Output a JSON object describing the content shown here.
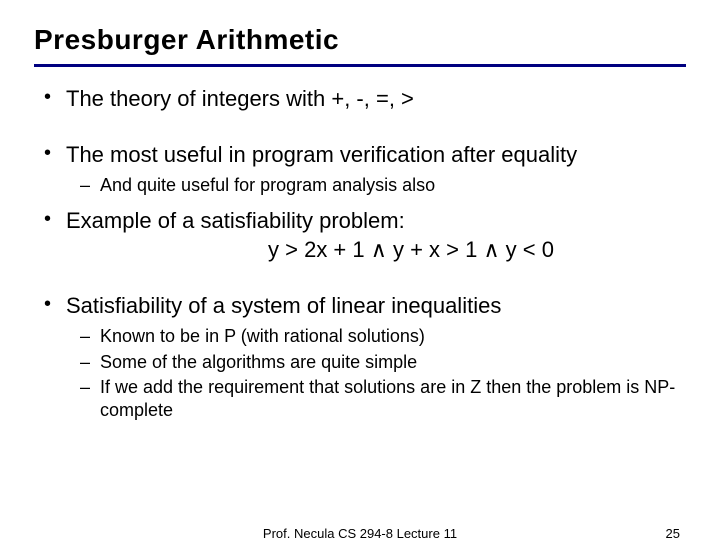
{
  "colors": {
    "text": "#000000",
    "background": "#ffffff",
    "rule": "#000080"
  },
  "typography": {
    "family": "Comic Sans MS",
    "title_size_pt": 28,
    "body_size_pt": 22,
    "sub_size_pt": 18,
    "footer_size_pt": 13,
    "title_weight": "bold"
  },
  "title": "Presburger Arithmetic",
  "bullets": {
    "b1": "The theory of integers with +, -, =, >",
    "b2": "The most useful in program verification after equality",
    "b2_sub": {
      "s1": "And quite useful for program analysis also"
    },
    "b3": "Example of a satisfiability problem:",
    "b3_formula": "y > 2x + 1 ∧ y + x > 1 ∧ y < 0",
    "b4": "Satisfiability of a system of linear inequalities",
    "b4_sub": {
      "s1": "Known to be in P (with rational solutions)",
      "s2": "Some of the algorithms are quite simple",
      "s3": "If we add the requirement that solutions are in Z then the problem is NP-complete"
    }
  },
  "footer": {
    "center": "Prof. Necula  CS 294-8  Lecture 11",
    "page": "25"
  }
}
